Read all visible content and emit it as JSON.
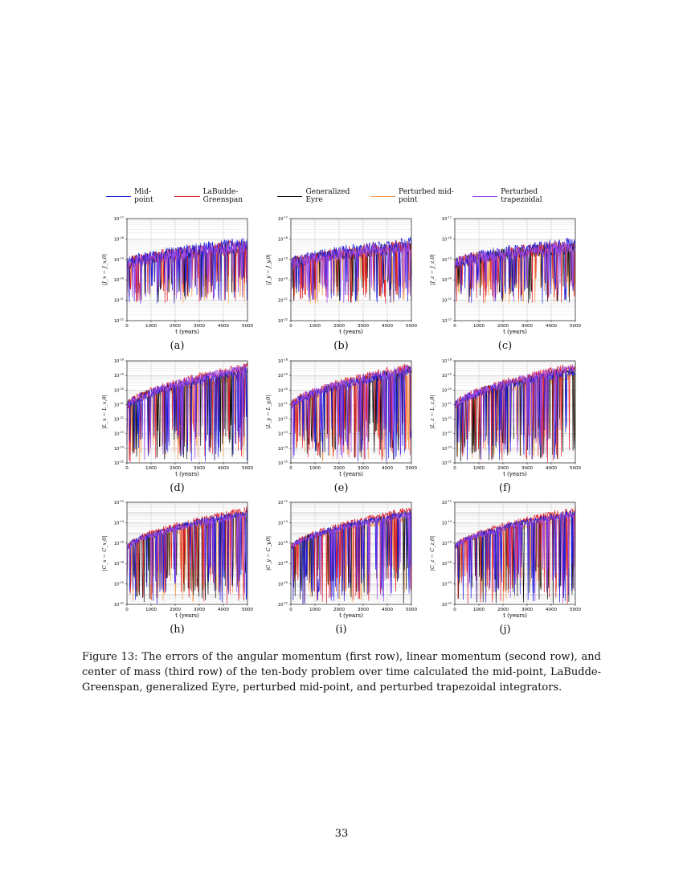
{
  "legend": [
    {
      "label": "Mid-point",
      "color": "#1f1fe0"
    },
    {
      "label": "LaBudde-Greenspan",
      "color": "#e0202a"
    },
    {
      "label": "Generalized Eyre",
      "color": "#111111"
    },
    {
      "label": "Perturbed mid-point",
      "color": "#f39a4c"
    },
    {
      "label": "Perturbed trapezoidal",
      "color": "#a04be6"
    }
  ],
  "chart_data": [
    {
      "type": "line",
      "panel_label": "(a)",
      "ylabel": "|J_x − J_x,0|",
      "xlabel": "t (years)",
      "xlim": [
        0,
        5000
      ],
      "xticks": [
        0,
        1000,
        2000,
        3000,
        4000,
        5000
      ],
      "ylog": true,
      "ylim_exp": [
        -22,
        -17
      ],
      "yticks_exp": [
        -17,
        -18,
        -19,
        -20,
        -21,
        -22
      ]
    },
    {
      "type": "line",
      "panel_label": "(b)",
      "ylabel": "|J_y − J_y,0|",
      "xlabel": "t (years)",
      "xlim": [
        0,
        5000
      ],
      "xticks": [
        0,
        1000,
        2000,
        3000,
        4000,
        5000
      ],
      "ylog": true,
      "ylim_exp": [
        -22,
        -17
      ],
      "yticks_exp": [
        -17,
        -18,
        -19,
        -20,
        -21,
        -22
      ]
    },
    {
      "type": "line",
      "panel_label": "(c)",
      "ylabel": "|J_z − J_z,0|",
      "xlabel": "t (years)",
      "xlim": [
        0,
        5000
      ],
      "xticks": [
        0,
        1000,
        2000,
        3000,
        4000,
        5000
      ],
      "ylog": true,
      "ylim_exp": [
        -22,
        -17
      ],
      "yticks_exp": [
        -17,
        -18,
        -19,
        -20,
        -21,
        -22
      ]
    },
    {
      "type": "line",
      "panel_label": "(d)",
      "ylabel": "|L_x − L_x,0|",
      "xlabel": "t (years)",
      "xlim": [
        0,
        5000
      ],
      "xticks": [
        0,
        1000,
        2000,
        3000,
        4000,
        5000
      ],
      "ylog": true,
      "ylim_exp": [
        -25,
        -18
      ],
      "yticks_exp": [
        -18,
        -19,
        -20,
        -21,
        -22,
        -23,
        -24,
        -25
      ]
    },
    {
      "type": "line",
      "panel_label": "(e)",
      "ylabel": "|L_y − L_y,0|",
      "xlabel": "t (years)",
      "xlim": [
        0,
        5000
      ],
      "xticks": [
        0,
        1000,
        2000,
        3000,
        4000,
        5000
      ],
      "ylog": true,
      "ylim_exp": [
        -25,
        -18
      ],
      "yticks_exp": [
        -18,
        -19,
        -20,
        -21,
        -22,
        -23,
        -24,
        -25
      ]
    },
    {
      "type": "line",
      "panel_label": "(f)",
      "ylabel": "|L_z − L_z,0|",
      "xlabel": "t (years)",
      "xlim": [
        0,
        5000
      ],
      "xticks": [
        0,
        1000,
        2000,
        3000,
        4000,
        5000
      ],
      "ylog": true,
      "ylim_exp": [
        -25,
        -18
      ],
      "yticks_exp": [
        -18,
        -19,
        -20,
        -21,
        -22,
        -23,
        -24,
        -25
      ]
    },
    {
      "type": "line",
      "panel_label": "(h)",
      "ylabel": "|C_x − C_x,0|",
      "xlabel": "t (years)",
      "xlim": [
        0,
        5000
      ],
      "xticks": [
        0,
        1000,
        2000,
        3000,
        4000,
        5000
      ],
      "ylog": true,
      "ylim_exp": [
        -22,
        -12
      ],
      "yticks_exp": [
        -12,
        -14,
        -16,
        -18,
        -20,
        -22
      ]
    },
    {
      "type": "line",
      "panel_label": "(i)",
      "ylabel": "|C_y − C_y,0|",
      "xlabel": "t (years)",
      "xlim": [
        0,
        5000
      ],
      "xticks": [
        0,
        1000,
        2000,
        3000,
        4000,
        5000
      ],
      "ylog": true,
      "ylim_exp": [
        -22,
        -12
      ],
      "yticks_exp": [
        -12,
        -14,
        -16,
        -18,
        -20,
        -22
      ]
    },
    {
      "type": "line",
      "panel_label": "(j)",
      "ylabel": "|C_z − C_z,0|",
      "xlabel": "t (years)",
      "xlim": [
        0,
        5000
      ],
      "xticks": [
        0,
        1000,
        2000,
        3000,
        4000,
        5000
      ],
      "ylog": true,
      "ylim_exp": [
        -22,
        -12
      ],
      "yticks_exp": [
        -12,
        -14,
        -16,
        -18,
        -20,
        -22
      ]
    }
  ],
  "caption": "Figure 13: The errors of the angular momentum (first row), linear momentum (second row), and center of mass (third row) of the ten-body problem over time calculated the mid-point, LaBudde-Greenspan, generalized Eyre, perturbed mid-point, and perturbed trapezoidal integrators.",
  "page_number": "33"
}
